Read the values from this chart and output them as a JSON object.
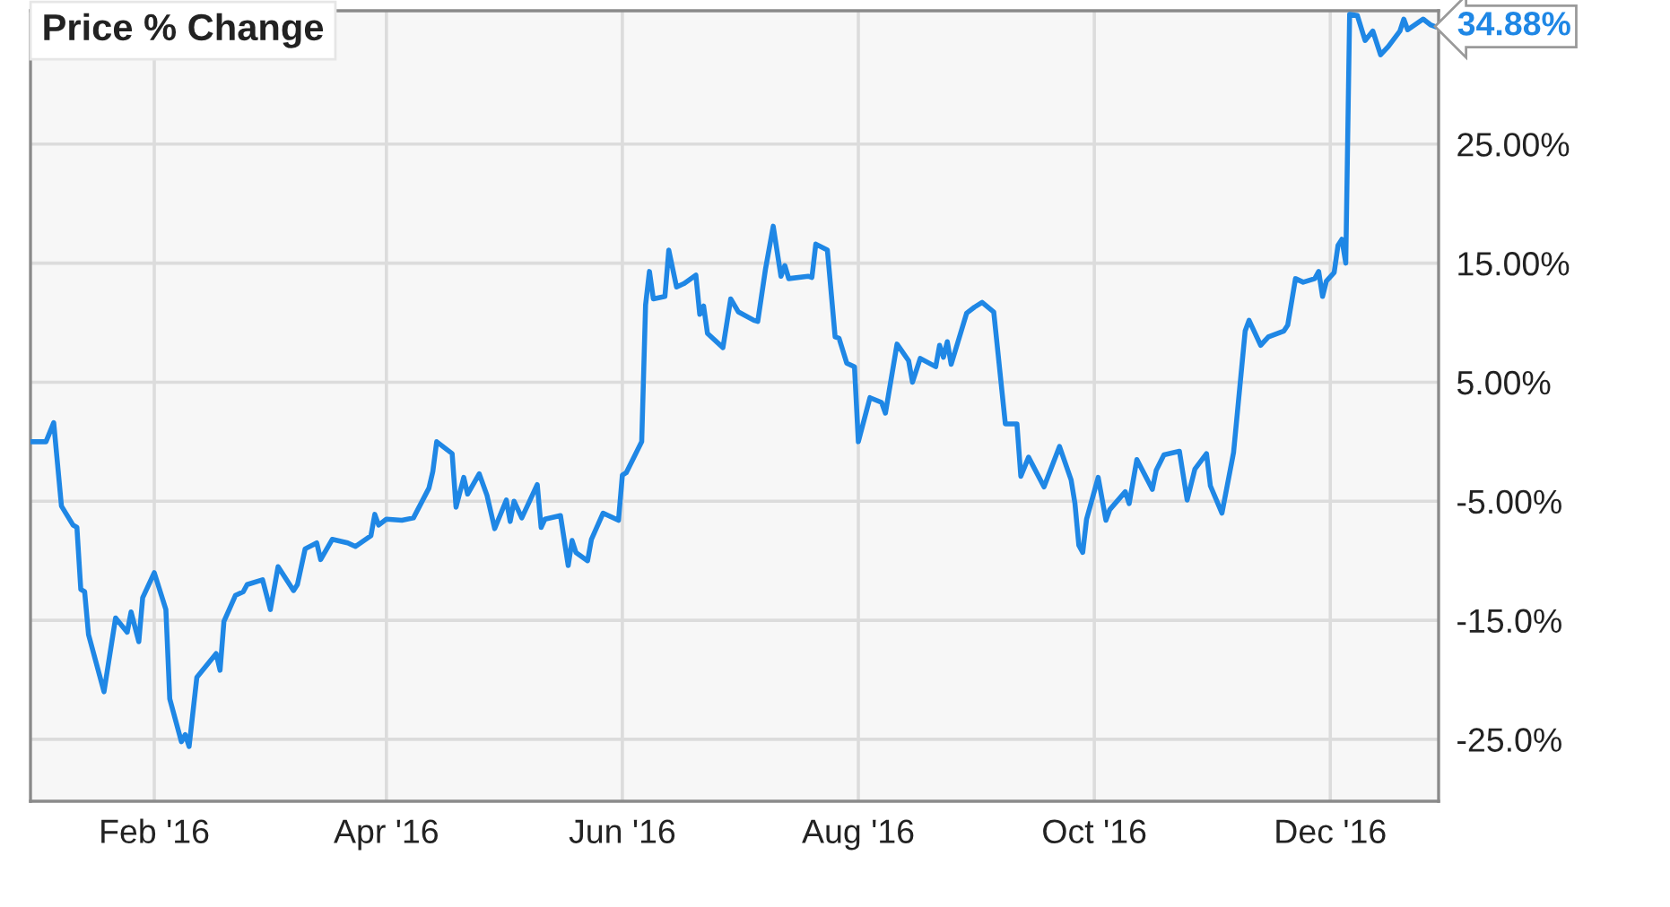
{
  "chart_data": {
    "type": "line",
    "title": "Price % Change",
    "color": "#1f87e5",
    "line_style": "solid",
    "grid": true,
    "x": [
      "2015-12-31",
      "2016-01-04",
      "2016-01-06",
      "2016-01-08",
      "2016-01-11",
      "2016-01-12",
      "2016-01-13",
      "2016-01-14",
      "2016-01-15",
      "2016-01-19",
      "2016-01-22",
      "2016-01-25",
      "2016-01-26",
      "2016-01-28",
      "2016-01-29",
      "2016-02-01",
      "2016-02-04",
      "2016-02-05",
      "2016-02-08",
      "2016-02-09",
      "2016-02-10",
      "2016-02-12",
      "2016-02-17",
      "2016-02-18",
      "2016-02-19",
      "2016-02-22",
      "2016-02-24",
      "2016-02-25",
      "2016-02-29",
      "2016-03-02",
      "2016-03-04",
      "2016-03-08",
      "2016-03-09",
      "2016-03-11",
      "2016-03-14",
      "2016-03-15",
      "2016-03-18",
      "2016-03-22",
      "2016-03-24",
      "2016-03-28",
      "2016-03-29",
      "2016-03-30",
      "2016-04-01",
      "2016-04-05",
      "2016-04-08",
      "2016-04-12",
      "2016-04-13",
      "2016-04-14",
      "2016-04-18",
      "2016-04-19",
      "2016-04-21",
      "2016-04-22",
      "2016-04-25",
      "2016-04-27",
      "2016-04-29",
      "2016-05-02",
      "2016-05-03",
      "2016-05-04",
      "2016-05-06",
      "2016-05-10",
      "2016-05-11",
      "2016-05-12",
      "2016-05-16",
      "2016-05-18",
      "2016-05-19",
      "2016-05-20",
      "2016-05-23",
      "2016-05-24",
      "2016-05-27",
      "2016-05-31",
      "2016-06-01",
      "2016-06-02",
      "2016-06-06",
      "2016-06-07",
      "2016-06-08",
      "2016-06-09",
      "2016-06-12",
      "2016-06-13",
      "2016-06-15",
      "2016-06-17",
      "2016-06-20",
      "2016-06-21",
      "2016-06-22",
      "2016-06-23",
      "2016-06-27",
      "2016-06-29",
      "2016-07-01",
      "2016-07-05",
      "2016-07-06",
      "2016-07-08",
      "2016-07-10",
      "2016-07-12",
      "2016-07-13",
      "2016-07-14",
      "2016-07-19",
      "2016-07-20",
      "2016-07-21",
      "2016-07-24",
      "2016-07-26",
      "2016-07-27",
      "2016-07-29",
      "2016-07-31",
      "2016-08-01",
      "2016-08-04",
      "2016-08-07",
      "2016-08-08",
      "2016-08-11",
      "2016-08-14",
      "2016-08-15",
      "2016-08-17",
      "2016-08-21",
      "2016-08-22",
      "2016-08-23",
      "2016-08-24",
      "2016-08-25",
      "2016-08-29",
      "2016-08-31",
      "2016-09-02",
      "2016-09-05",
      "2016-09-08",
      "2016-09-11",
      "2016-09-12",
      "2016-09-14",
      "2016-09-18",
      "2016-09-22",
      "2016-09-25",
      "2016-09-26",
      "2016-09-27",
      "2016-09-28",
      "2016-09-29",
      "2016-10-02",
      "2016-10-04",
      "2016-10-05",
      "2016-10-09",
      "2016-10-10",
      "2016-10-12",
      "2016-10-16",
      "2016-10-17",
      "2016-10-19",
      "2016-10-23",
      "2016-10-25",
      "2016-10-27",
      "2016-10-30",
      "2016-10-31",
      "2016-11-03",
      "2016-11-06",
      "2016-11-09",
      "2016-11-10",
      "2016-11-13",
      "2016-11-15",
      "2016-11-19",
      "2016-11-20",
      "2016-11-22",
      "2016-11-24",
      "2016-11-27",
      "2016-11-28",
      "2016-11-29",
      "2016-11-30",
      "2016-12-02",
      "2016-12-03",
      "2016-12-04",
      "2016-12-05",
      "2016-12-06",
      "2016-12-08",
      "2016-12-10",
      "2016-12-12",
      "2016-12-14",
      "2016-12-16",
      "2016-12-19",
      "2016-12-20",
      "2016-12-21",
      "2016-12-25",
      "2016-12-27",
      "2016-12-28"
    ],
    "values": [
      0,
      0,
      1.6,
      -5.4,
      -7.0,
      -7.2,
      -12.4,
      -12.6,
      -16.2,
      -21.0,
      -14.8,
      -16.0,
      -14.3,
      -16.8,
      -13.1,
      -11.0,
      -14.1,
      -21.6,
      -25.2,
      -24.6,
      -25.6,
      -19.8,
      -17.8,
      -19.2,
      -15.1,
      -12.9,
      -12.6,
      -12.0,
      -11.6,
      -14.1,
      -10.5,
      -12.5,
      -12.0,
      -9.0,
      -8.5,
      -9.9,
      -8.2,
      -8.5,
      -8.8,
      -7.9,
      -6.1,
      -7.0,
      -6.5,
      -6.6,
      -6.4,
      -3.9,
      -2.5,
      0.0,
      -1.0,
      -5.5,
      -3.0,
      -4.4,
      -2.7,
      -4.5,
      -7.3,
      -4.9,
      -6.7,
      -5.0,
      -6.4,
      -3.6,
      -7.2,
      -6.5,
      -6.2,
      -10.4,
      -8.3,
      -9.3,
      -10.0,
      -8.2,
      -6.0,
      -6.6,
      -2.8,
      -2.6,
      0.0,
      11.5,
      14.3,
      12.0,
      12.2,
      16.1,
      13.0,
      13.3,
      14.0,
      10.7,
      11.4,
      9.1,
      7.9,
      12.0,
      10.9,
      10.2,
      10.1,
      14.5,
      18.1,
      13.9,
      14.8,
      13.7,
      13.9,
      13.8,
      16.6,
      16.1,
      8.8,
      8.7,
      6.6,
      6.3,
      0.0,
      3.7,
      3.3,
      2.4,
      8.2,
      6.8,
      5.0,
      7.0,
      6.3,
      8.1,
      7.1,
      8.4,
      6.5,
      10.8,
      11.3,
      11.7,
      10.9,
      1.5,
      1.5,
      -2.9,
      -1.3,
      -3.8,
      -0.4,
      -3.2,
      -5.2,
      -8.7,
      -9.3,
      -6.5,
      -3.0,
      -6.6,
      -5.7,
      -4.2,
      -5.2,
      -1.5,
      -4.0,
      -2.4,
      -1.1,
      -0.8,
      -4.9,
      -2.3,
      -1.0,
      -3.7,
      -6.0,
      -0.9,
      9.3,
      10.2,
      8.1,
      8.8,
      9.3,
      9.8,
      13.7,
      13.4,
      13.7,
      14.3,
      12.2,
      13.5,
      14.2,
      16.5,
      17.0,
      15.0,
      35.9,
      35.8,
      33.7,
      34.5,
      32.5,
      33.2,
      34.5,
      35.5,
      34.6,
      35.5,
      35.0,
      34.88
    ],
    "xlim": [
      "2015-12-31",
      "2016-12-29"
    ],
    "xticks": [
      {
        "value": "2016-02-01",
        "label": "Feb '16"
      },
      {
        "value": "2016-04-01",
        "label": "Apr '16"
      },
      {
        "value": "2016-06-01",
        "label": "Jun '16"
      },
      {
        "value": "2016-08-01",
        "label": "Aug '16"
      },
      {
        "value": "2016-10-01",
        "label": "Oct '16"
      },
      {
        "value": "2016-12-01",
        "label": "Dec '16"
      }
    ],
    "ylim": [
      -30.2,
      36.2
    ],
    "yticks": [
      {
        "value": 25,
        "label": "25.00%"
      },
      {
        "value": 15,
        "label": "15.00%"
      },
      {
        "value": 5,
        "label": "5.00%"
      },
      {
        "value": -5,
        "label": "-5.00%"
      },
      {
        "value": -15,
        "label": "-15.0%"
      },
      {
        "value": -25,
        "label": "-25.0%"
      }
    ],
    "annotations": [
      {
        "text": "34.88%",
        "x": "2016-12-28",
        "y": 34.88
      }
    ]
  }
}
